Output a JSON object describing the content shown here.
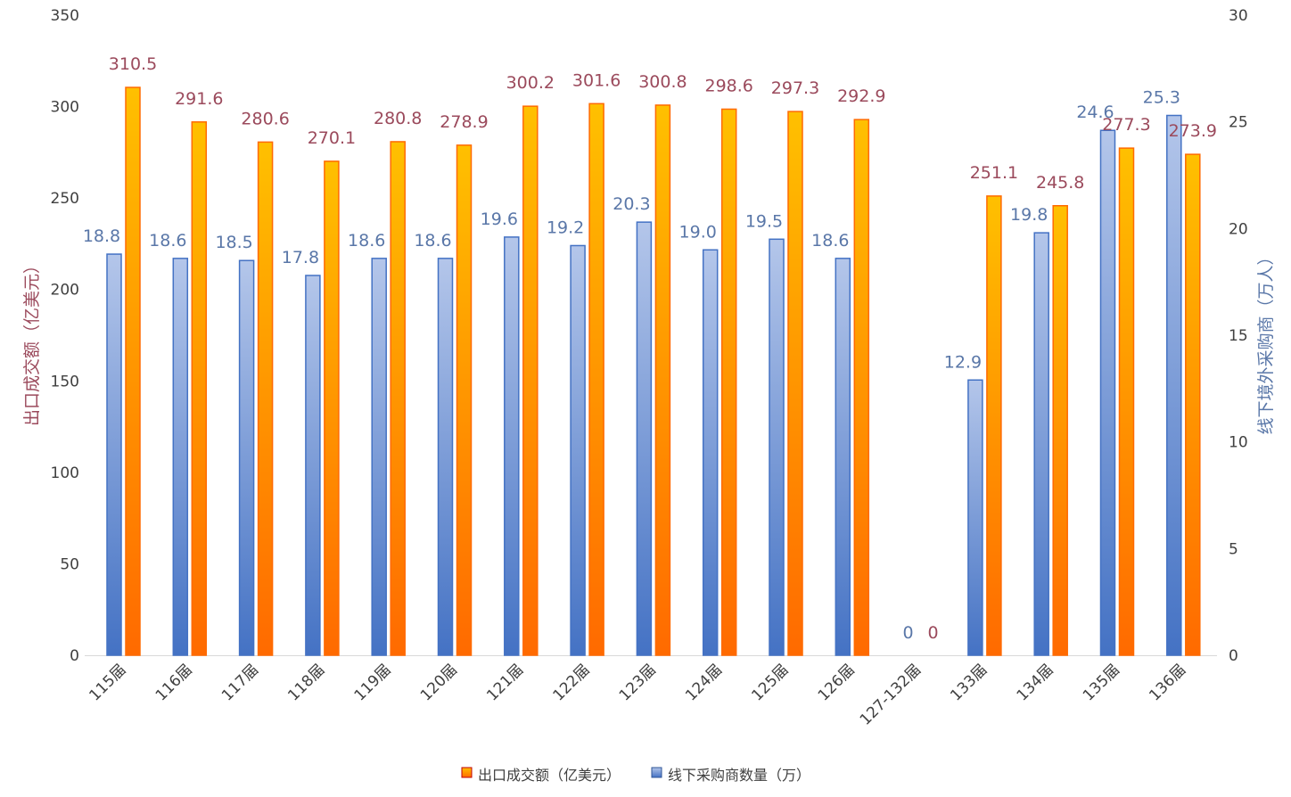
{
  "chart_data": {
    "type": "bar",
    "categories": [
      "115届",
      "116届",
      "117届",
      "118届",
      "119届",
      "120届",
      "121届",
      "122届",
      "123届",
      "124届",
      "125届",
      "126届",
      "127-132届",
      "133届",
      "134届",
      "135届",
      "136届"
    ],
    "series": [
      {
        "name": "线下采购商数量（万）",
        "axis": "right",
        "color": "#4472c4",
        "values": [
          18.8,
          18.6,
          18.5,
          17.8,
          18.6,
          18.6,
          19.6,
          19.2,
          20.3,
          19.0,
          19.5,
          18.6,
          0,
          12.9,
          19.8,
          24.6,
          25.3
        ],
        "labels": [
          "18.8",
          "18.6",
          "18.5",
          "17.8",
          "18.6",
          "18.6",
          "19.6",
          "19.2",
          "20.3",
          "19.0",
          "19.5",
          "18.6",
          "0",
          "12.9",
          "19.8",
          "24.6",
          "25.3"
        ]
      },
      {
        "name": "出口成交额（亿美元）",
        "axis": "left",
        "color": "#ffa500",
        "values": [
          310.5,
          291.6,
          280.6,
          270.1,
          280.8,
          278.9,
          300.2,
          301.6,
          300.8,
          298.6,
          297.3,
          292.9,
          0,
          251.1,
          245.8,
          277.3,
          273.9
        ],
        "labels": [
          "310.5",
          "291.6",
          "280.6",
          "270.1",
          "280.8",
          "278.9",
          "300.2",
          "301.6",
          "300.8",
          "298.6",
          "297.3",
          "292.9",
          "0",
          "251.1",
          "245.8",
          "277.3",
          "273.9"
        ]
      }
    ],
    "ylabel_left": "出口成交额（亿美元）",
    "ylabel_right": "线下境外采购商（万人）",
    "ylim_left": [
      0,
      350
    ],
    "ylim_right": [
      0,
      30
    ],
    "yticks_left": [
      "0",
      "50",
      "100",
      "150",
      "200",
      "250",
      "300",
      "350"
    ],
    "yticks_right": [
      "0",
      "5",
      "10",
      "15",
      "20",
      "25",
      "30"
    ],
    "grid": false,
    "legend_position": "bottom",
    "label_colors": {
      "left": "#9b4a5c",
      "right": "#5a77a8"
    }
  }
}
